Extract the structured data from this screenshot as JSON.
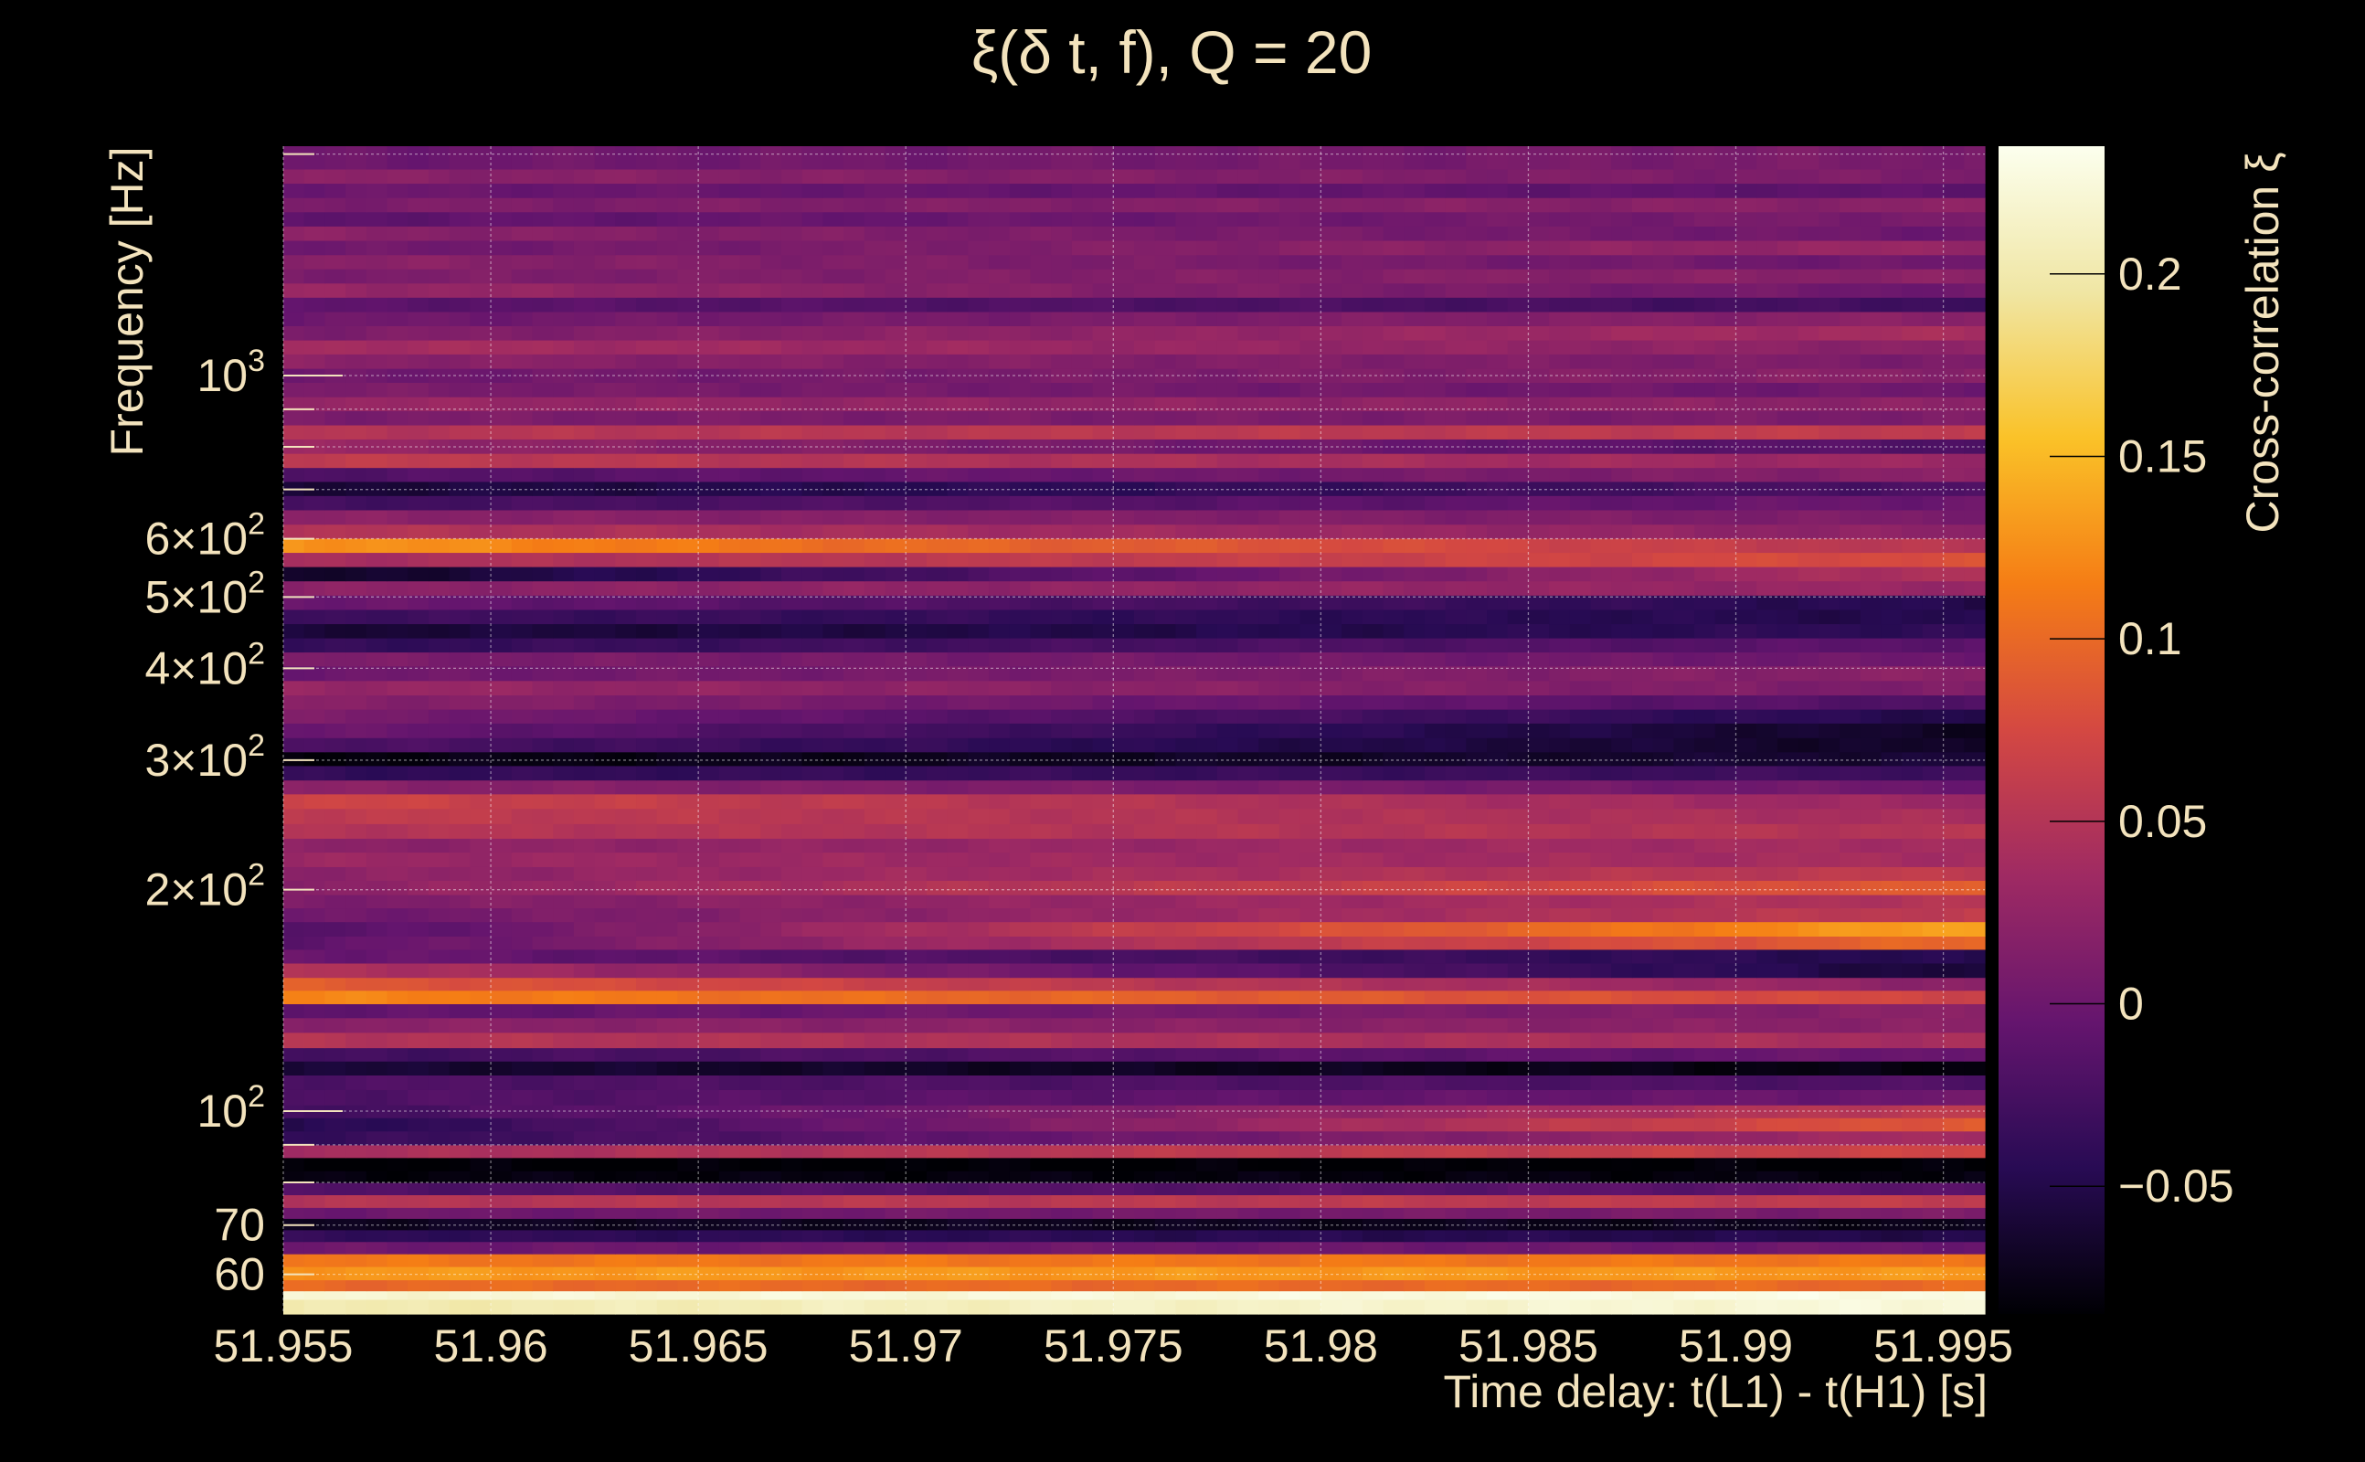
{
  "chart_data": {
    "type": "heatmap",
    "title": "ξ(δ t, f), Q = 20",
    "xlabel": "Time delay: t(L1) - t(H1) [s]",
    "ylabel": "Frequency [Hz]",
    "colorbar_label": "Cross-correlation ξ",
    "xlim": [
      51.955,
      51.996
    ],
    "ylim": [
      53,
      2050
    ],
    "y_scale": "log",
    "grid": true,
    "x_ticks": [
      {
        "value": 51.955,
        "label": "51.955"
      },
      {
        "value": 51.96,
        "label": "51.96"
      },
      {
        "value": 51.965,
        "label": "51.965"
      },
      {
        "value": 51.97,
        "label": "51.97"
      },
      {
        "value": 51.975,
        "label": "51.975"
      },
      {
        "value": 51.98,
        "label": "51.98"
      },
      {
        "value": 51.985,
        "label": "51.985"
      },
      {
        "value": 51.99,
        "label": "51.99"
      },
      {
        "value": 51.995,
        "label": "51.995"
      }
    ],
    "y_ticks": [
      {
        "value": 60,
        "base": "60",
        "exp": ""
      },
      {
        "value": 70,
        "base": "70",
        "exp": ""
      },
      {
        "value": 100,
        "base": "10",
        "exp": "2"
      },
      {
        "value": 200,
        "base": "2×10",
        "exp": "2"
      },
      {
        "value": 300,
        "base": "3×10",
        "exp": "2"
      },
      {
        "value": 400,
        "base": "4×10",
        "exp": "2"
      },
      {
        "value": 500,
        "base": "5×10",
        "exp": "2"
      },
      {
        "value": 600,
        "base": "6×10",
        "exp": "2"
      },
      {
        "value": 1000,
        "base": "10",
        "exp": "3"
      }
    ],
    "colorbar": {
      "range": [
        -0.085,
        0.235
      ],
      "ticks": [
        {
          "value": -0.05,
          "label": "−0.05"
        },
        {
          "value": 0,
          "label": "0"
        },
        {
          "value": 0.05,
          "label": "0.05"
        },
        {
          "value": 0.1,
          "label": "0.1"
        },
        {
          "value": 0.15,
          "label": "0.15"
        },
        {
          "value": 0.2,
          "label": "0.2"
        }
      ],
      "colormap": "inferno",
      "colormap_stops": [
        "#000004",
        "#280b54",
        "#65156e",
        "#9f2a63",
        "#d44842",
        "#f57d15",
        "#fac228",
        "#f0e6a4",
        "#fcffee"
      ]
    },
    "frequency_bands": [
      {
        "f_low": 53,
        "f_high": 55.5,
        "value_start": 0.2,
        "value_end": 0.225
      },
      {
        "f_low": 55.5,
        "f_high": 57,
        "value_start": 0.22,
        "value_end": 0.23
      },
      {
        "f_low": 57,
        "f_high": 59,
        "value_start": 0.1,
        "value_end": 0.1
      },
      {
        "f_low": 59,
        "f_high": 61.5,
        "value_start": 0.13,
        "value_end": 0.13
      },
      {
        "f_low": 61.5,
        "f_high": 64,
        "value_start": 0.11,
        "value_end": 0.11
      },
      {
        "f_low": 64,
        "f_high": 66.5,
        "value_start": 0.0,
        "value_end": 0.0
      },
      {
        "f_low": 66.5,
        "f_high": 69,
        "value_start": -0.04,
        "value_end": -0.05
      },
      {
        "f_low": 69,
        "f_high": 71.5,
        "value_start": -0.07,
        "value_end": -0.075
      },
      {
        "f_low": 71.5,
        "f_high": 74,
        "value_start": 0.0,
        "value_end": 0.01
      },
      {
        "f_low": 74,
        "f_high": 77,
        "value_start": 0.05,
        "value_end": 0.06
      },
      {
        "f_low": 77,
        "f_high": 80,
        "value_start": -0.02,
        "value_end": -0.01
      },
      {
        "f_low": 80,
        "f_high": 83,
        "value_start": -0.08,
        "value_end": -0.08
      },
      {
        "f_low": 83,
        "f_high": 86.5,
        "value_start": -0.085,
        "value_end": -0.085
      },
      {
        "f_low": 86.5,
        "f_high": 90,
        "value_start": 0.04,
        "value_end": 0.07
      },
      {
        "f_low": 90,
        "f_high": 94,
        "value_start": -0.04,
        "value_end": 0.04
      },
      {
        "f_low": 94,
        "f_high": 98,
        "value_start": -0.05,
        "value_end": 0.09
      },
      {
        "f_low": 98,
        "f_high": 102,
        "value_start": -0.03,
        "value_end": 0.06
      },
      {
        "f_low": 102,
        "f_high": 107,
        "value_start": -0.02,
        "value_end": 0.0
      },
      {
        "f_low": 107,
        "f_high": 112,
        "value_start": -0.02,
        "value_end": -0.02
      },
      {
        "f_low": 112,
        "f_high": 117,
        "value_start": -0.06,
        "value_end": -0.08
      },
      {
        "f_low": 117,
        "f_high": 122,
        "value_start": -0.03,
        "value_end": 0.0
      },
      {
        "f_low": 122,
        "f_high": 128,
        "value_start": 0.05,
        "value_end": 0.04
      },
      {
        "f_low": 128,
        "f_high": 134,
        "value_start": 0.02,
        "value_end": 0.02
      },
      {
        "f_low": 134,
        "f_high": 140,
        "value_start": -0.01,
        "value_end": 0.02
      },
      {
        "f_low": 140,
        "f_high": 146,
        "value_start": 0.12,
        "value_end": 0.07
      },
      {
        "f_low": 146,
        "f_high": 152,
        "value_start": 0.09,
        "value_end": 0.02
      },
      {
        "f_low": 152,
        "f_high": 159,
        "value_start": 0.05,
        "value_end": -0.06
      },
      {
        "f_low": 159,
        "f_high": 166,
        "value_start": 0.0,
        "value_end": -0.05
      },
      {
        "f_low": 166,
        "f_high": 173,
        "value_start": -0.01,
        "value_end": 0.1
      },
      {
        "f_low": 173,
        "f_high": 181,
        "value_start": -0.02,
        "value_end": 0.14
      },
      {
        "f_low": 181,
        "f_high": 189,
        "value_start": 0.0,
        "value_end": 0.06
      },
      {
        "f_low": 189,
        "f_high": 197,
        "value_start": 0.01,
        "value_end": 0.05
      },
      {
        "f_low": 197,
        "f_high": 206,
        "value_start": 0.02,
        "value_end": 0.09
      },
      {
        "f_low": 206,
        "f_high": 215,
        "value_start": 0.02,
        "value_end": 0.06
      },
      {
        "f_low": 215,
        "f_high": 225,
        "value_start": 0.03,
        "value_end": 0.04
      },
      {
        "f_low": 225,
        "f_high": 235,
        "value_start": 0.02,
        "value_end": 0.04
      },
      {
        "f_low": 235,
        "f_high": 246,
        "value_start": 0.05,
        "value_end": 0.05
      },
      {
        "f_low": 246,
        "f_high": 258,
        "value_start": 0.06,
        "value_end": 0.04
      },
      {
        "f_low": 258,
        "f_high": 270,
        "value_start": 0.07,
        "value_end": 0.03
      },
      {
        "f_low": 270,
        "f_high": 282,
        "value_start": 0.02,
        "value_end": 0.0
      },
      {
        "f_low": 282,
        "f_high": 295,
        "value_start": -0.04,
        "value_end": -0.03
      },
      {
        "f_low": 295,
        "f_high": 308,
        "value_start": -0.08,
        "value_end": -0.06
      },
      {
        "f_low": 308,
        "f_high": 322,
        "value_start": -0.02,
        "value_end": -0.07
      },
      {
        "f_low": 322,
        "f_high": 337,
        "value_start": 0.0,
        "value_end": -0.07
      },
      {
        "f_low": 337,
        "f_high": 352,
        "value_start": 0.01,
        "value_end": -0.05
      },
      {
        "f_low": 352,
        "f_high": 368,
        "value_start": 0.02,
        "value_end": -0.02
      },
      {
        "f_low": 368,
        "f_high": 385,
        "value_start": 0.03,
        "value_end": 0.01
      },
      {
        "f_low": 385,
        "f_high": 403,
        "value_start": 0.0,
        "value_end": 0.02
      },
      {
        "f_low": 403,
        "f_high": 421,
        "value_start": 0.01,
        "value_end": 0.0
      },
      {
        "f_low": 421,
        "f_high": 440,
        "value_start": -0.04,
        "value_end": -0.01
      },
      {
        "f_low": 440,
        "f_high": 460,
        "value_start": -0.06,
        "value_end": -0.04
      },
      {
        "f_low": 460,
        "f_high": 481,
        "value_start": -0.03,
        "value_end": -0.05
      },
      {
        "f_low": 481,
        "f_high": 503,
        "value_start": 0.0,
        "value_end": -0.05
      },
      {
        "f_low": 503,
        "f_high": 526,
        "value_start": 0.02,
        "value_end": 0.03
      },
      {
        "f_low": 526,
        "f_high": 550,
        "value_start": -0.07,
        "value_end": 0.05
      },
      {
        "f_low": 550,
        "f_high": 575,
        "value_start": 0.04,
        "value_end": 0.08
      },
      {
        "f_low": 575,
        "f_high": 601,
        "value_start": 0.13,
        "value_end": 0.05
      },
      {
        "f_low": 601,
        "f_high": 628,
        "value_start": 0.05,
        "value_end": 0.02
      },
      {
        "f_low": 628,
        "f_high": 657,
        "value_start": 0.02,
        "value_end": 0.01
      },
      {
        "f_low": 657,
        "f_high": 687,
        "value_start": -0.03,
        "value_end": 0.0
      },
      {
        "f_low": 687,
        "f_high": 718,
        "value_start": -0.06,
        "value_end": -0.02
      },
      {
        "f_low": 718,
        "f_high": 750,
        "value_start": -0.02,
        "value_end": 0.02
      },
      {
        "f_low": 750,
        "f_high": 784,
        "value_start": 0.06,
        "value_end": 0.03
      },
      {
        "f_low": 784,
        "f_high": 820,
        "value_start": 0.03,
        "value_end": -0.02
      },
      {
        "f_low": 820,
        "f_high": 857,
        "value_start": 0.05,
        "value_end": 0.06
      },
      {
        "f_low": 857,
        "f_high": 896,
        "value_start": 0.01,
        "value_end": 0.01
      },
      {
        "f_low": 896,
        "f_high": 936,
        "value_start": 0.03,
        "value_end": 0.02
      },
      {
        "f_low": 936,
        "f_high": 979,
        "value_start": 0.01,
        "value_end": 0.0
      },
      {
        "f_low": 979,
        "f_high": 1023,
        "value_start": 0.0,
        "value_end": 0.02
      },
      {
        "f_low": 1023,
        "f_high": 1070,
        "value_start": 0.02,
        "value_end": 0.01
      },
      {
        "f_low": 1070,
        "f_high": 1118,
        "value_start": 0.04,
        "value_end": 0.02
      },
      {
        "f_low": 1118,
        "f_high": 1169,
        "value_start": 0.01,
        "value_end": 0.04
      },
      {
        "f_low": 1169,
        "f_high": 1222,
        "value_start": 0.0,
        "value_end": 0.02
      },
      {
        "f_low": 1222,
        "f_high": 1278,
        "value_start": -0.01,
        "value_end": -0.03
      },
      {
        "f_low": 1278,
        "f_high": 1336,
        "value_start": 0.03,
        "value_end": 0.0
      },
      {
        "f_low": 1336,
        "f_high": 1397,
        "value_start": 0.01,
        "value_end": 0.02
      },
      {
        "f_low": 1397,
        "f_high": 1460,
        "value_start": 0.02,
        "value_end": 0.0
      },
      {
        "f_low": 1460,
        "f_high": 1527,
        "value_start": 0.0,
        "value_end": 0.03
      },
      {
        "f_low": 1527,
        "f_high": 1597,
        "value_start": 0.02,
        "value_end": 0.0
      },
      {
        "f_low": 1597,
        "f_high": 1670,
        "value_start": -0.01,
        "value_end": 0.01
      },
      {
        "f_low": 1670,
        "f_high": 1746,
        "value_start": 0.01,
        "value_end": 0.02
      },
      {
        "f_low": 1746,
        "f_high": 1826,
        "value_start": 0.0,
        "value_end": -0.01
      },
      {
        "f_low": 1826,
        "f_high": 1909,
        "value_start": 0.02,
        "value_end": 0.01
      },
      {
        "f_low": 1909,
        "f_high": 2050,
        "value_start": 0.0,
        "value_end": 0.01
      }
    ]
  }
}
